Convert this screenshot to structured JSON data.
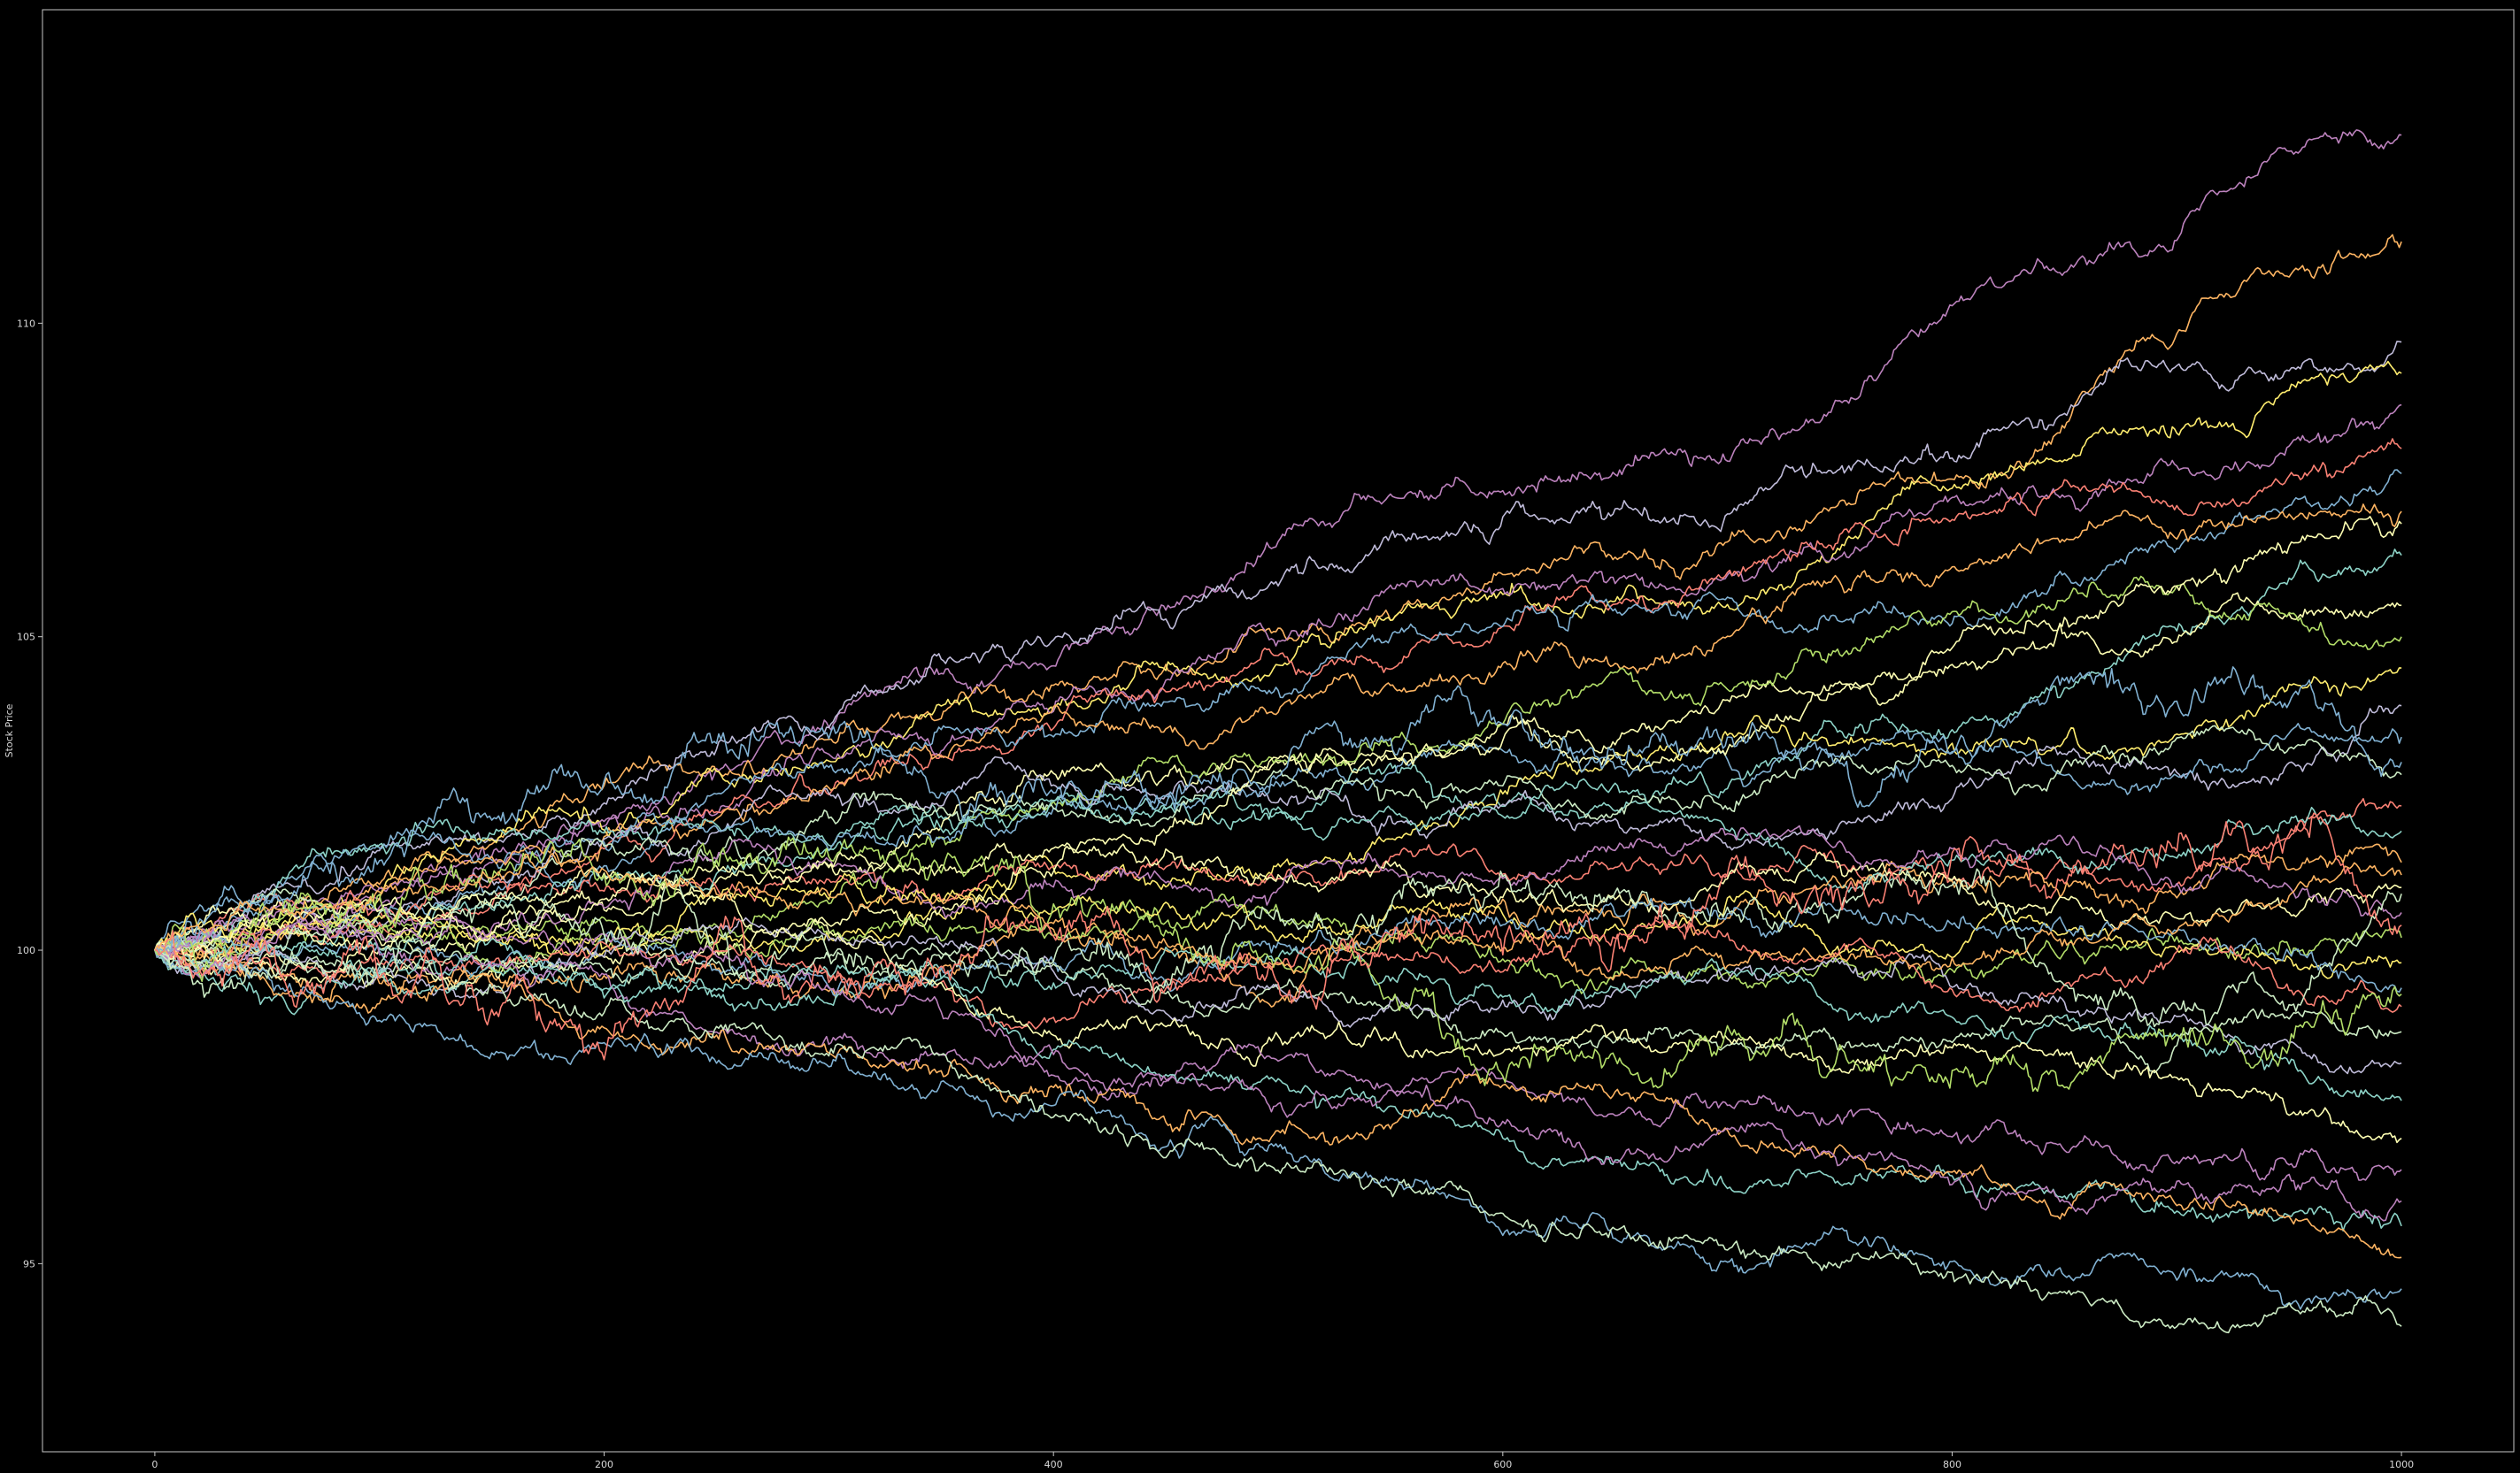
{
  "chart_data": {
    "type": "line",
    "title": "",
    "xlabel": "",
    "ylabel": "Stock Price",
    "xlim": [
      -50,
      1050
    ],
    "ylim": [
      92,
      115
    ],
    "xticks": [
      0,
      200,
      400,
      600,
      800,
      1000
    ],
    "yticks": [
      95,
      100,
      105,
      110
    ],
    "x_tick_labels": [
      "0",
      "200",
      "400",
      "600",
      "800",
      "1000"
    ],
    "y_tick_labels": [
      "95",
      "100",
      "105",
      "110"
    ],
    "grid": false,
    "legend": false,
    "background": "#000000",
    "n_steps": 1000,
    "start_value": 100,
    "palette": [
      "#8dd3c7",
      "#feffb3",
      "#bfbbd9",
      "#fa8174",
      "#81b1d2",
      "#fdb462",
      "#b3de69",
      "#bc82bd",
      "#ccebc4",
      "#ffed6f"
    ],
    "series": [
      {
        "end": 113.0,
        "min": 99.3,
        "max": 113.6,
        "color": "#bc82bd"
      },
      {
        "end": 111.3,
        "min": 99.0,
        "max": 111.8,
        "color": "#fdb462"
      },
      {
        "end": 109.7,
        "min": 99.2,
        "max": 110.3,
        "color": "#bfbbd9"
      },
      {
        "end": 109.2,
        "min": 98.9,
        "max": 109.9,
        "color": "#ffed6f"
      },
      {
        "end": 108.7,
        "min": 99.1,
        "max": 109.2,
        "color": "#bc82bd"
      },
      {
        "end": 108.0,
        "min": 99.3,
        "max": 108.6,
        "color": "#fa8174"
      },
      {
        "end": 107.6,
        "min": 99.0,
        "max": 108.1,
        "color": "#81b1d2"
      },
      {
        "end": 107.0,
        "min": 99.4,
        "max": 107.7,
        "color": "#fdb462"
      },
      {
        "end": 106.3,
        "min": 98.8,
        "max": 106.8,
        "color": "#8dd3c7"
      },
      {
        "end": 105.5,
        "min": 99.1,
        "max": 106.0,
        "color": "#feffb3"
      },
      {
        "end": 105.0,
        "min": 99.0,
        "max": 105.6,
        "color": "#b3de69"
      },
      {
        "end": 104.5,
        "min": 98.7,
        "max": 105.2,
        "color": "#ffed6f"
      },
      {
        "end": 103.9,
        "min": 98.9,
        "max": 104.6,
        "color": "#bfbbd9"
      },
      {
        "end": 103.4,
        "min": 98.6,
        "max": 104.0,
        "color": "#81b1d2"
      },
      {
        "end": 102.8,
        "min": 98.8,
        "max": 103.5,
        "color": "#ccebc4"
      },
      {
        "end": 102.3,
        "min": 98.5,
        "max": 103.0,
        "color": "#fa8174"
      },
      {
        "end": 101.9,
        "min": 98.7,
        "max": 102.6,
        "color": "#8dd3c7"
      },
      {
        "end": 101.4,
        "min": 98.4,
        "max": 102.1,
        "color": "#fdb462"
      },
      {
        "end": 101.0,
        "min": 98.6,
        "max": 101.7,
        "color": "#feffb3"
      },
      {
        "end": 100.6,
        "min": 98.3,
        "max": 101.4,
        "color": "#bc82bd"
      },
      {
        "end": 100.2,
        "min": 98.5,
        "max": 101.0,
        "color": "#b3de69"
      },
      {
        "end": 99.8,
        "min": 98.2,
        "max": 100.8,
        "color": "#ffed6f"
      },
      {
        "end": 99.4,
        "min": 98.0,
        "max": 100.6,
        "color": "#81b1d2"
      },
      {
        "end": 99.1,
        "min": 97.8,
        "max": 100.5,
        "color": "#fa8174"
      },
      {
        "end": 98.7,
        "min": 97.5,
        "max": 100.4,
        "color": "#ccebc4"
      },
      {
        "end": 98.2,
        "min": 97.2,
        "max": 100.4,
        "color": "#bfbbd9"
      },
      {
        "end": 97.6,
        "min": 96.8,
        "max": 100.3,
        "color": "#8dd3c7"
      },
      {
        "end": 97.0,
        "min": 96.3,
        "max": 100.3,
        "color": "#feffb3"
      },
      {
        "end": 96.5,
        "min": 95.8,
        "max": 100.3,
        "color": "#bc82bd"
      },
      {
        "end": 95.6,
        "min": 95.0,
        "max": 100.2,
        "color": "#8dd3c7"
      },
      {
        "end": 95.1,
        "min": 94.4,
        "max": 100.2,
        "color": "#fdb462"
      },
      {
        "end": 94.6,
        "min": 94.0,
        "max": 100.2,
        "color": "#81b1d2"
      },
      {
        "end": 94.0,
        "min": 92.9,
        "max": 100.2,
        "color": "#ccebc4"
      },
      {
        "end": 96.0,
        "min": 92.8,
        "max": 100.2,
        "color": "#bc82bd"
      },
      {
        "end": 100.9,
        "min": 96.7,
        "max": 101.9,
        "color": "#ccebc4"
      },
      {
        "end": 106.8,
        "min": 99.5,
        "max": 110.2,
        "color": "#feffb3"
      },
      {
        "end": 103.0,
        "min": 99.4,
        "max": 105.8,
        "color": "#81b1d2"
      },
      {
        "end": 99.3,
        "min": 97.0,
        "max": 102.0,
        "color": "#b3de69"
      },
      {
        "end": 101.2,
        "min": 98.1,
        "max": 102.5,
        "color": "#fdb462"
      },
      {
        "end": 100.4,
        "min": 97.6,
        "max": 102.2,
        "color": "#fa8174"
      }
    ]
  }
}
